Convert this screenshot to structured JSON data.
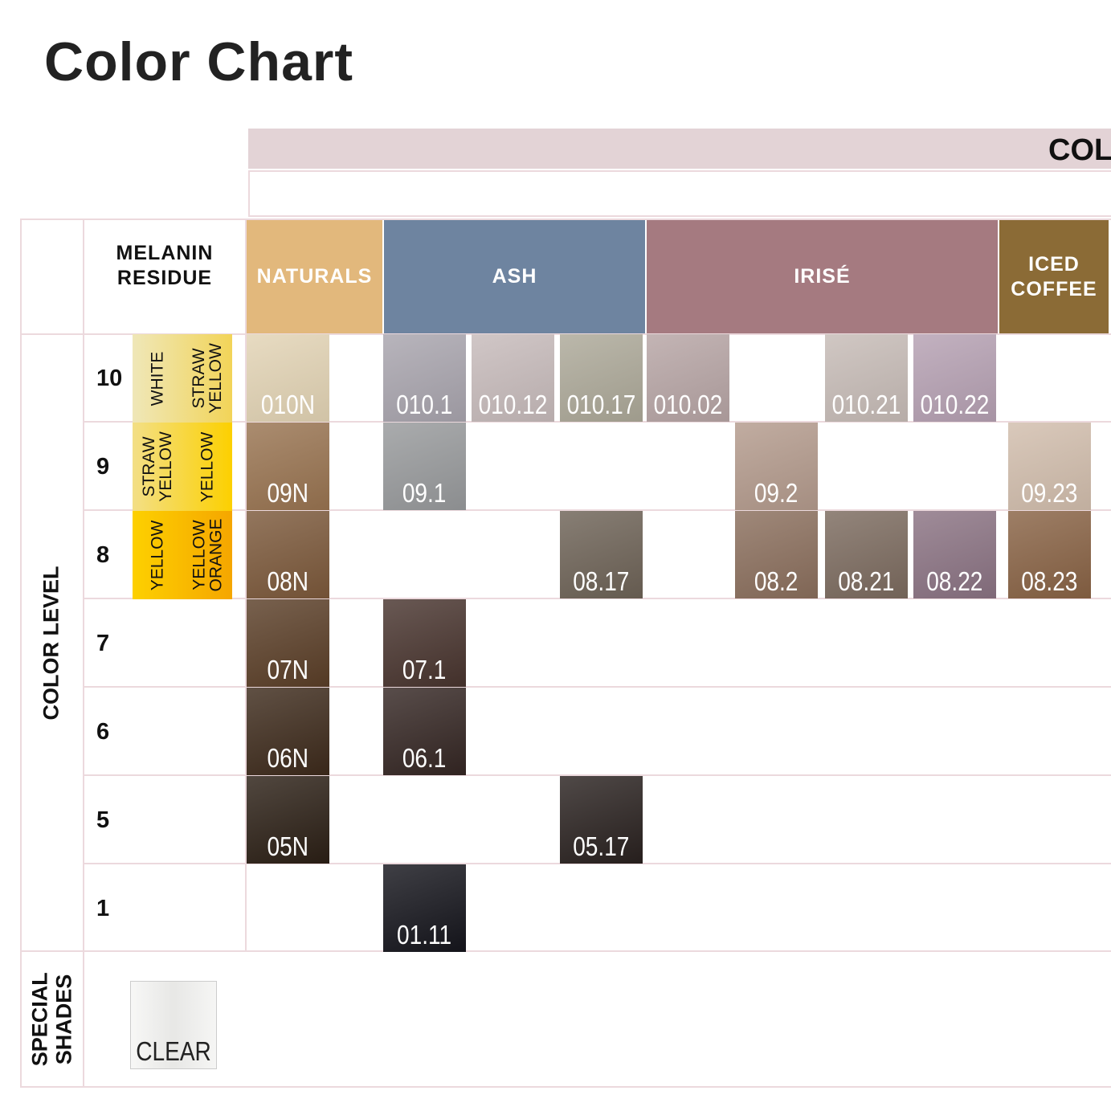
{
  "header": {
    "title": "Color Chart",
    "banner": "COL"
  },
  "table": {
    "corner_label": "MELANIN RESIDUE",
    "families": [
      {
        "name": "NATURALS",
        "color": "#e2b87c",
        "columns": 1
      },
      {
        "name": "ASH",
        "color": "#6e84a0",
        "columns": 3
      },
      {
        "name": "IRISÉ",
        "color": "#a57a80",
        "columns": 4
      },
      {
        "name": "ICED COFFEE",
        "color": "#8b6b36",
        "columns": 1
      }
    ],
    "level_label": "COLOR LEVEL",
    "rows": [
      {
        "level": "10",
        "melanin": [
          "WHITE",
          "STRAW YELLOW"
        ],
        "melanin_colors": [
          "#efe7b8",
          "#f2d458"
        ],
        "swatches": [
          {
            "label": "010N",
            "color": "#e2d3b4"
          },
          {
            "label": "010.1",
            "color": "#a8a4ad"
          },
          {
            "label": "010.12",
            "color": "#c6baba"
          },
          {
            "label": "010.17",
            "color": "#aca898"
          },
          {
            "label": "010.02",
            "color": "#b6a4a4"
          },
          null,
          {
            "label": "010.21",
            "color": "#c6bbb6"
          },
          {
            "label": "010.22",
            "color": "#b5a0b2"
          },
          null
        ]
      },
      {
        "level": "9",
        "melanin": [
          "STRAW YELLOW",
          "YELLOW"
        ],
        "melanin_colors": [
          "#f3df86",
          "#fcd000"
        ],
        "swatches": [
          {
            "label": "09N",
            "color": "#987350"
          },
          {
            "label": "09.1",
            "color": "#97999b"
          },
          null,
          null,
          null,
          {
            "label": "09.2",
            "color": "#b39a8c"
          },
          null,
          null,
          {
            "label": "09.23",
            "color": "#d1bdac"
          }
        ]
      },
      {
        "level": "8",
        "melanin": [
          "YELLOW",
          "YELLOW ORANGE"
        ],
        "melanin_colors": [
          "#fdd000",
          "#f5a600"
        ],
        "swatches": [
          {
            "label": "08N",
            "color": "#7b583a"
          },
          null,
          null,
          {
            "label": "08.17",
            "color": "#6d6256"
          },
          null,
          {
            "label": "08.2",
            "color": "#8a6e5c"
          },
          {
            "label": "08.21",
            "color": "#7b6a5e"
          },
          {
            "label": "08.22",
            "color": "#8a7282"
          },
          {
            "label": "08.23",
            "color": "#886244"
          }
        ]
      },
      {
        "level": "7",
        "swatches": [
          {
            "label": "07N",
            "color": "#5a3e27"
          },
          {
            "label": "07.1",
            "color": "#48342e"
          },
          null,
          null,
          null,
          null,
          null,
          null,
          null
        ]
      },
      {
        "level": "6",
        "swatches": [
          {
            "label": "06N",
            "color": "#3d2a1b"
          },
          {
            "label": "06.1",
            "color": "#342623"
          },
          null,
          null,
          null,
          null,
          null,
          null,
          null
        ]
      },
      {
        "level": "5",
        "swatches": [
          {
            "label": "05N",
            "color": "#2b1f15"
          },
          null,
          null,
          {
            "label": "05.17",
            "color": "#29211f"
          },
          null,
          null,
          null,
          null,
          null
        ]
      },
      {
        "level": "1",
        "swatches": [
          null,
          {
            "label": "01.11",
            "color": "#15151c"
          },
          null,
          null,
          null,
          null,
          null,
          null,
          null
        ]
      }
    ],
    "special_label": "SPECIAL SHADES",
    "special": [
      {
        "label": "CLEAR",
        "color": "#efefed"
      }
    ]
  }
}
